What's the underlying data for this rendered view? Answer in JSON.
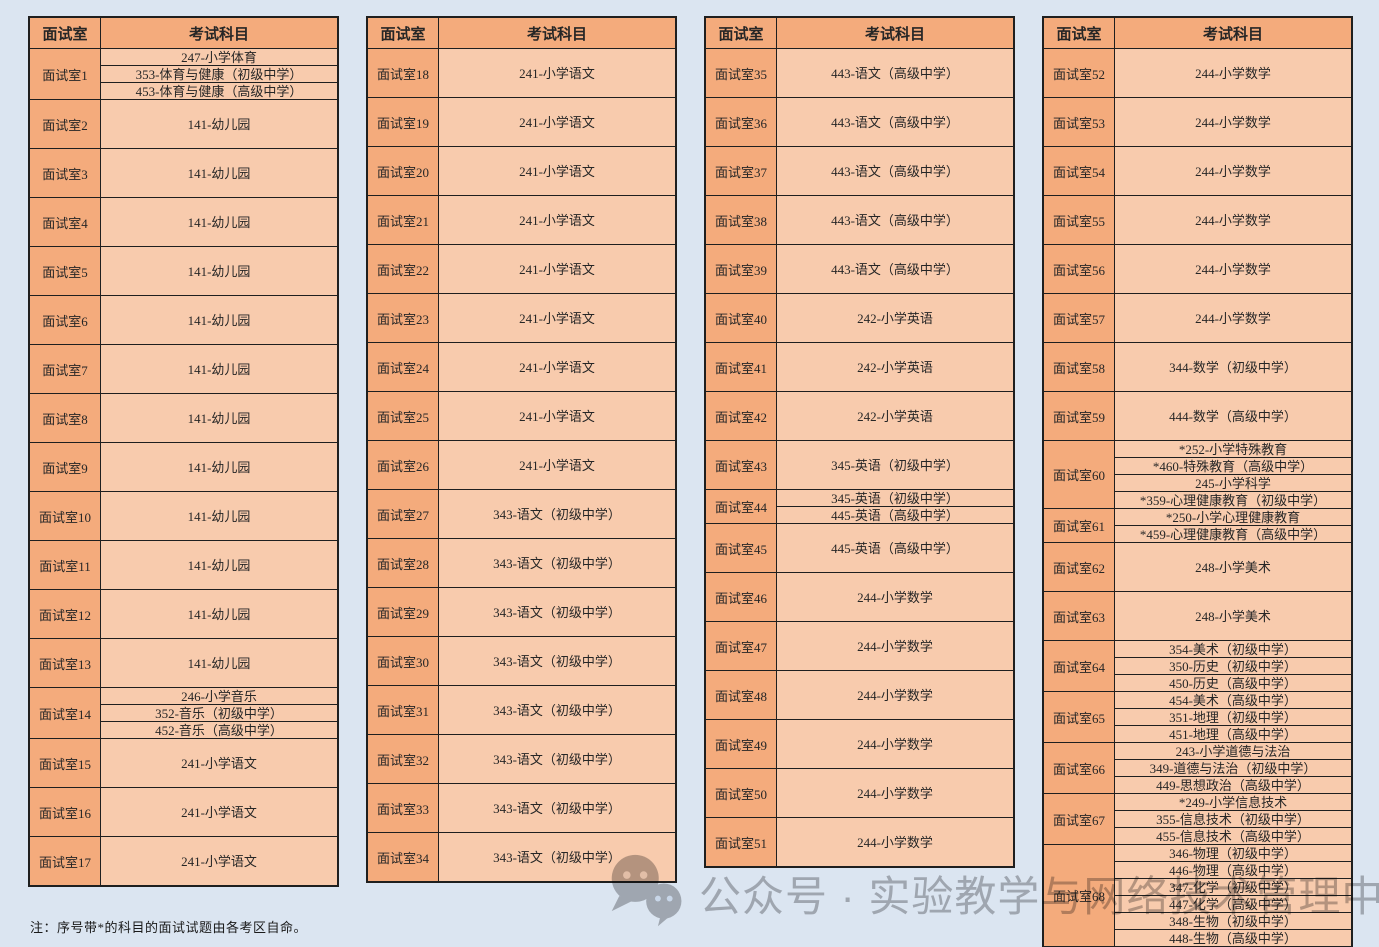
{
  "page": {
    "note": "注：序号带*的科目的面试试题由各考区自命。",
    "watermark": {
      "icon": "wechat-icon",
      "text": "公众号 · 实验教学与网络技术管理中心"
    },
    "colors": {
      "background": "#DBE5F1",
      "header_bg": "#F4AB7C",
      "room_bg": "#F4AB7C",
      "subject_bg": "#F8CBAD",
      "border": "#1f1f1f",
      "watermark_gray": "#8e8e90"
    }
  },
  "column_headers": [
    "面试室",
    "考试科目"
  ],
  "tables": [
    {
      "rooms": [
        {
          "room": "面试室1",
          "subjects": [
            "247-小学体育",
            "353-体育与健康（初级中学）",
            "453-体育与健康（高级中学）"
          ]
        },
        {
          "room": "面试室2",
          "subjects": [
            "141-幼儿园"
          ]
        },
        {
          "room": "面试室3",
          "subjects": [
            "141-幼儿园"
          ]
        },
        {
          "room": "面试室4",
          "subjects": [
            "141-幼儿园"
          ]
        },
        {
          "room": "面试室5",
          "subjects": [
            "141-幼儿园"
          ]
        },
        {
          "room": "面试室6",
          "subjects": [
            "141-幼儿园"
          ]
        },
        {
          "room": "面试室7",
          "subjects": [
            "141-幼儿园"
          ]
        },
        {
          "room": "面试室8",
          "subjects": [
            "141-幼儿园"
          ]
        },
        {
          "room": "面试室9",
          "subjects": [
            "141-幼儿园"
          ]
        },
        {
          "room": "面试室10",
          "subjects": [
            "141-幼儿园"
          ]
        },
        {
          "room": "面试室11",
          "subjects": [
            "141-幼儿园"
          ]
        },
        {
          "room": "面试室12",
          "subjects": [
            "141-幼儿园"
          ]
        },
        {
          "room": "面试室13",
          "subjects": [
            "141-幼儿园"
          ]
        },
        {
          "room": "面试室14",
          "subjects": [
            "246-小学音乐",
            "352-音乐（初级中学）",
            "452-音乐（高级中学）"
          ]
        },
        {
          "room": "面试室15",
          "subjects": [
            "241-小学语文"
          ]
        },
        {
          "room": "面试室16",
          "subjects": [
            "241-小学语文"
          ]
        },
        {
          "room": "面试室17",
          "subjects": [
            "241-小学语文"
          ]
        }
      ]
    },
    {
      "rooms": [
        {
          "room": "面试室18",
          "subjects": [
            "241-小学语文"
          ]
        },
        {
          "room": "面试室19",
          "subjects": [
            "241-小学语文"
          ]
        },
        {
          "room": "面试室20",
          "subjects": [
            "241-小学语文"
          ]
        },
        {
          "room": "面试室21",
          "subjects": [
            "241-小学语文"
          ]
        },
        {
          "room": "面试室22",
          "subjects": [
            "241-小学语文"
          ]
        },
        {
          "room": "面试室23",
          "subjects": [
            "241-小学语文"
          ]
        },
        {
          "room": "面试室24",
          "subjects": [
            "241-小学语文"
          ]
        },
        {
          "room": "面试室25",
          "subjects": [
            "241-小学语文"
          ]
        },
        {
          "room": "面试室26",
          "subjects": [
            "241-小学语文"
          ]
        },
        {
          "room": "面试室27",
          "subjects": [
            "343-语文（初级中学）"
          ]
        },
        {
          "room": "面试室28",
          "subjects": [
            "343-语文（初级中学）"
          ]
        },
        {
          "room": "面试室29",
          "subjects": [
            "343-语文（初级中学）"
          ]
        },
        {
          "room": "面试室30",
          "subjects": [
            "343-语文（初级中学）"
          ]
        },
        {
          "room": "面试室31",
          "subjects": [
            "343-语文（初级中学）"
          ]
        },
        {
          "room": "面试室32",
          "subjects": [
            "343-语文（初级中学）"
          ]
        },
        {
          "room": "面试室33",
          "subjects": [
            "343-语文（初级中学）"
          ]
        },
        {
          "room": "面试室34",
          "subjects": [
            "343-语文（初级中学）"
          ]
        }
      ]
    },
    {
      "rooms": [
        {
          "room": "面试室35",
          "subjects": [
            "443-语文（高级中学）"
          ]
        },
        {
          "room": "面试室36",
          "subjects": [
            "443-语文（高级中学）"
          ]
        },
        {
          "room": "面试室37",
          "subjects": [
            "443-语文（高级中学）"
          ]
        },
        {
          "room": "面试室38",
          "subjects": [
            "443-语文（高级中学）"
          ]
        },
        {
          "room": "面试室39",
          "subjects": [
            "443-语文（高级中学）"
          ]
        },
        {
          "room": "面试室40",
          "subjects": [
            "242-小学英语"
          ]
        },
        {
          "room": "面试室41",
          "subjects": [
            "242-小学英语"
          ]
        },
        {
          "room": "面试室42",
          "subjects": [
            "242-小学英语"
          ]
        },
        {
          "room": "面试室43",
          "subjects": [
            "345-英语（初级中学）"
          ]
        },
        {
          "room": "面试室44",
          "subjects": [
            "345-英语（初级中学）",
            "445-英语（高级中学）"
          ]
        },
        {
          "room": "面试室45",
          "subjects": [
            "445-英语（高级中学）"
          ]
        },
        {
          "room": "面试室46",
          "subjects": [
            "244-小学数学"
          ]
        },
        {
          "room": "面试室47",
          "subjects": [
            "244-小学数学"
          ]
        },
        {
          "room": "面试室48",
          "subjects": [
            "244-小学数学"
          ]
        },
        {
          "room": "面试室49",
          "subjects": [
            "244-小学数学"
          ]
        },
        {
          "room": "面试室50",
          "subjects": [
            "244-小学数学"
          ]
        },
        {
          "room": "面试室51",
          "subjects": [
            "244-小学数学"
          ]
        }
      ]
    },
    {
      "rooms": [
        {
          "room": "面试室52",
          "subjects": [
            "244-小学数学"
          ]
        },
        {
          "room": "面试室53",
          "subjects": [
            "244-小学数学"
          ]
        },
        {
          "room": "面试室54",
          "subjects": [
            "244-小学数学"
          ]
        },
        {
          "room": "面试室55",
          "subjects": [
            "244-小学数学"
          ]
        },
        {
          "room": "面试室56",
          "subjects": [
            "244-小学数学"
          ]
        },
        {
          "room": "面试室57",
          "subjects": [
            "244-小学数学"
          ]
        },
        {
          "room": "面试室58",
          "subjects": [
            "344-数学（初级中学）"
          ]
        },
        {
          "room": "面试室59",
          "subjects": [
            "444-数学（高级中学）"
          ]
        },
        {
          "room": "面试室60",
          "subjects": [
            "*252-小学特殊教育",
            "*460-特殊教育（高级中学）",
            "245-小学科学",
            "*359-心理健康教育（初级中学）"
          ]
        },
        {
          "room": "面试室61",
          "subjects": [
            "*250-小学心理健康教育",
            "*459-心理健康教育（高级中学）"
          ]
        },
        {
          "room": "面试室62",
          "subjects": [
            "248-小学美术"
          ]
        },
        {
          "room": "面试室63",
          "subjects": [
            "248-小学美术"
          ]
        },
        {
          "room": "面试室64",
          "subjects": [
            "354-美术（初级中学）",
            "350-历史（初级中学）",
            "450-历史（高级中学）"
          ]
        },
        {
          "room": "面试室65",
          "subjects": [
            "454-美术（高级中学）",
            "351-地理（初级中学）",
            "451-地理（高级中学）"
          ]
        },
        {
          "room": "面试室66",
          "subjects": [
            "243-小学道德与法治",
            "349-道德与法治（初级中学）",
            "449-思想政治（高级中学）"
          ]
        },
        {
          "room": "面试室67",
          "subjects": [
            "*249-小学信息技术",
            "355-信息技术（初级中学）",
            "455-信息技术（高级中学）"
          ]
        },
        {
          "room": "面试室68",
          "subjects": [
            "346-物理（初级中学）",
            "446-物理（高级中学）",
            "347-化学（初级中学）",
            "447-化学（高级中学）",
            "348-生物（初级中学）",
            "448-生物（高级中学）"
          ]
        }
      ]
    }
  ]
}
